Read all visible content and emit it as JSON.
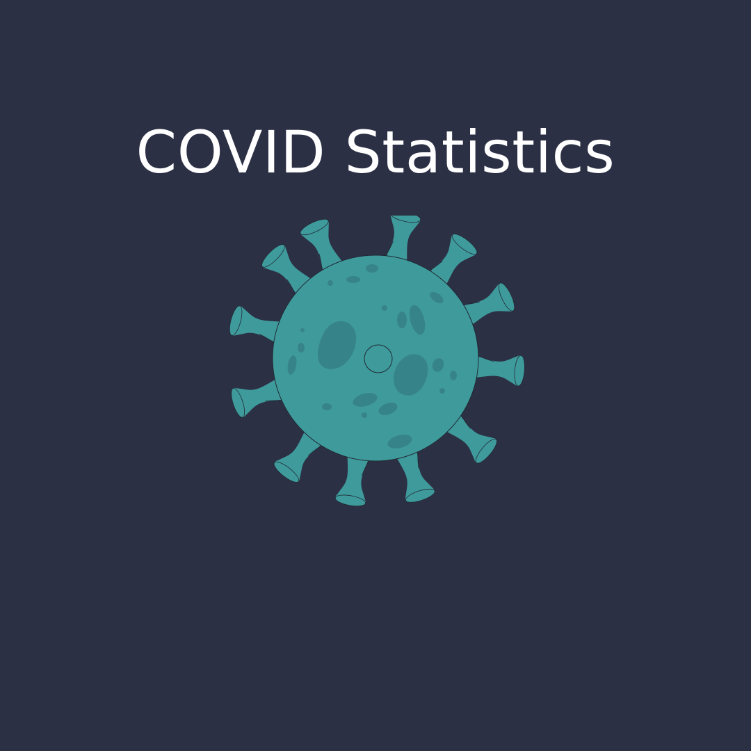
{
  "title": "COVID Statistics",
  "illustration": {
    "icon": "virus-icon",
    "fill_color": "#3f9a9c",
    "spot_color": "#37838a",
    "outline_color": "#1f2a33"
  },
  "colors": {
    "background": "#2c3045",
    "title_text": "#ffffff"
  }
}
